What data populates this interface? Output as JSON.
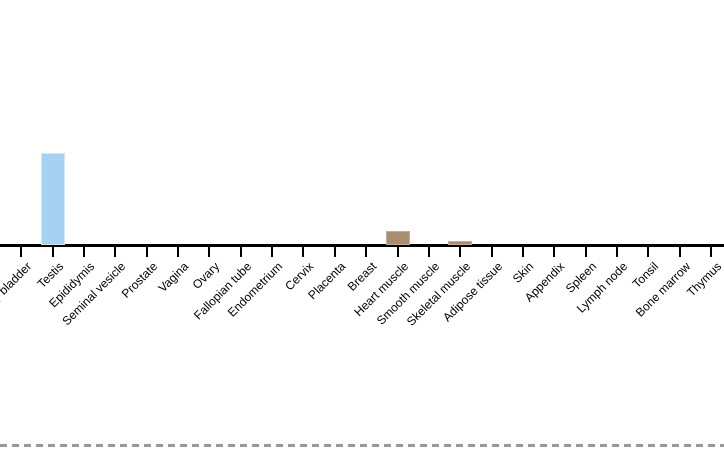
{
  "chart_data": {
    "type": "bar",
    "title": "",
    "xlabel": "",
    "ylabel": "",
    "y_axis_visible": false,
    "note": "cropped chart: no y-axis or numeric scale visible; values are bar heights in screen px",
    "categories": [
      "Urinary bladder",
      "Testis",
      "Epididymis",
      "Seminal vesicle",
      "Prostate",
      "Vagina",
      "Ovary",
      "Fallopian tube",
      "Endometrium",
      "Cervix",
      "Placenta",
      "Breast",
      "Heart muscle",
      "Smooth muscle",
      "Skeletal muscle",
      "Adipose tissue",
      "Skin",
      "Appendix",
      "Spleen",
      "Lymph node",
      "Tonsil",
      "Bone marrow",
      "Thymus"
    ],
    "values": [
      0,
      92,
      0,
      0,
      0,
      0,
      0,
      0,
      0,
      0,
      0,
      0,
      14,
      0,
      4,
      0,
      0,
      0,
      0,
      0,
      0,
      0,
      0
    ],
    "bar_colors": [
      null,
      "#a7d1f0",
      null,
      null,
      null,
      null,
      null,
      null,
      null,
      null,
      null,
      null,
      "#a98d70",
      null,
      "#a98d70",
      null,
      null,
      null,
      null,
      null,
      null,
      null,
      null
    ],
    "bar_edge_colors": [
      null,
      "#cfe7f9",
      null,
      null,
      null,
      null,
      null,
      null,
      null,
      null,
      null,
      null,
      "#c6ae92",
      null,
      "#c6ae92",
      null,
      null,
      null,
      null,
      null,
      null,
      null,
      null
    ],
    "first_label_clipped_left": true,
    "axis_color": "#000000",
    "label_color": "#000000",
    "dashed_divider_color": "#999999",
    "grid": false,
    "legend": false
  }
}
